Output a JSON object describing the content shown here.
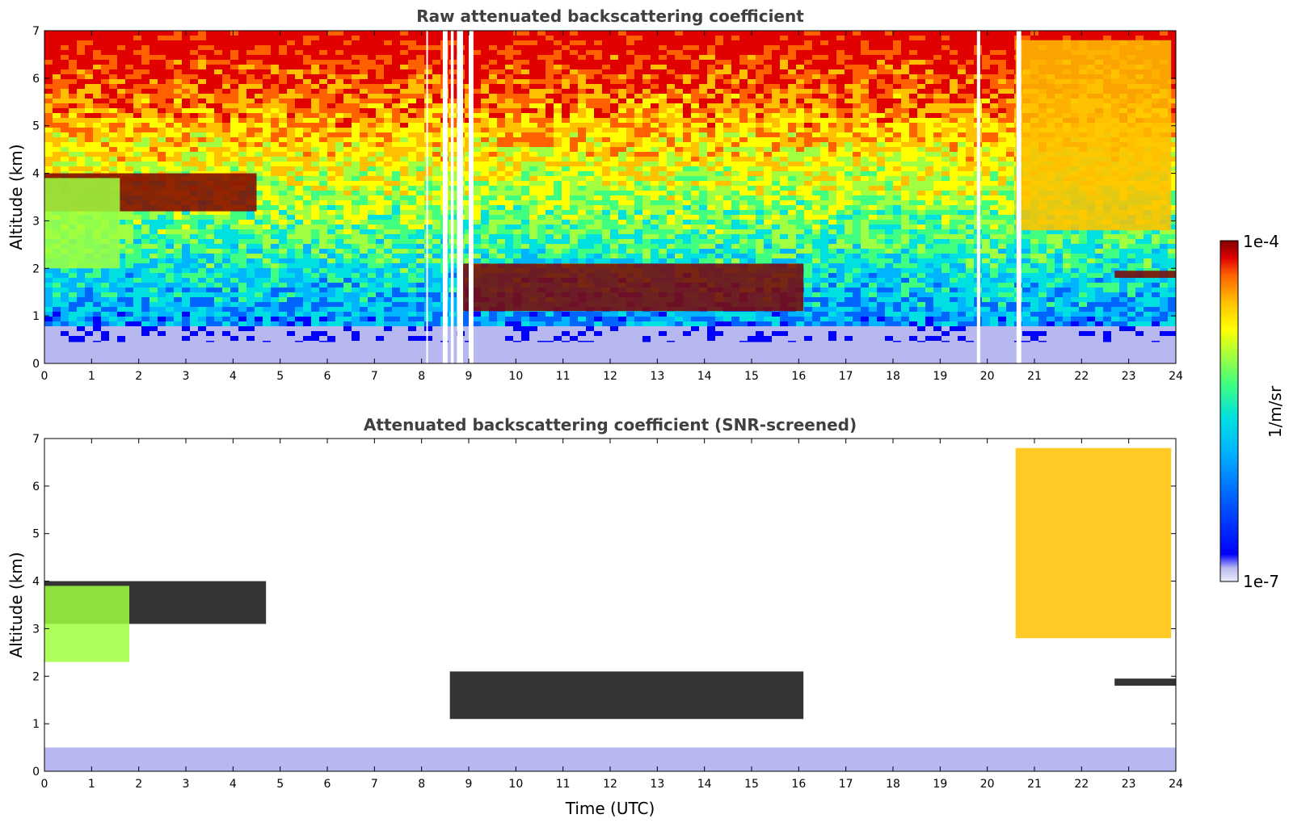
{
  "chart_data": [
    {
      "type": "heatmap",
      "title": "Raw attenuated backscattering coefficient",
      "xlabel": "",
      "ylabel": "Altitude (km)",
      "xlim": [
        0,
        24
      ],
      "ylim": [
        0,
        7
      ],
      "xticks": [
        "0",
        "1",
        "2",
        "3",
        "4",
        "5",
        "6",
        "7",
        "8",
        "9",
        "10",
        "11",
        "12",
        "13",
        "14",
        "15",
        "16",
        "17",
        "18",
        "19",
        "20",
        "21",
        "22",
        "23",
        "24"
      ],
      "yticks": [
        "0",
        "1",
        "2",
        "3",
        "4",
        "5",
        "6",
        "7"
      ],
      "background_signal": "noisy molecular return increasing with altitude (blue near ground to yellow/red aloft)",
      "gaps": [
        {
          "t0": 8.1,
          "t1": 8.12
        },
        {
          "t0": 8.45,
          "t1": 8.55
        },
        {
          "t0": 8.62,
          "t1": 8.68
        },
        {
          "t0": 8.75,
          "t1": 8.88
        },
        {
          "t0": 9.0,
          "t1": 9.1
        },
        {
          "t0": 19.78,
          "t1": 19.85
        },
        {
          "t0": 20.62,
          "t1": 20.72
        }
      ],
      "features": [
        {
          "label": "boundary layer",
          "t0": 0,
          "t1": 24,
          "h0": 0,
          "h1": 0.45,
          "level": "low"
        },
        {
          "label": "cloud layer",
          "t0": 0,
          "t1": 4.5,
          "h0": 3.2,
          "h1": 4.0,
          "level": "high"
        },
        {
          "label": "precipitation virga",
          "t0": 0,
          "t1": 1.6,
          "h0": 2.0,
          "h1": 3.9,
          "level": "mid"
        },
        {
          "label": "low cloud",
          "t0": 8.8,
          "t1": 16.1,
          "h0": 1.1,
          "h1": 2.1,
          "level": "high"
        },
        {
          "label": "high cloud",
          "t0": 20.6,
          "t1": 23.9,
          "h0": 2.8,
          "h1": 6.8,
          "level": "mid-high"
        },
        {
          "label": "low cloud",
          "t0": 22.7,
          "t1": 24,
          "h0": 1.8,
          "h1": 1.95,
          "level": "high"
        }
      ]
    },
    {
      "type": "heatmap",
      "title": "Attenuated backscattering coefficient (SNR-screened)",
      "xlabel": "Time (UTC)",
      "ylabel": "Altitude (km)",
      "xlim": [
        0,
        24
      ],
      "ylim": [
        0,
        7
      ],
      "xticks": [
        "0",
        "1",
        "2",
        "3",
        "4",
        "5",
        "6",
        "7",
        "8",
        "9",
        "10",
        "11",
        "12",
        "13",
        "14",
        "15",
        "16",
        "17",
        "18",
        "19",
        "20",
        "21",
        "22",
        "23",
        "24"
      ],
      "yticks": [
        "0",
        "1",
        "2",
        "3",
        "4",
        "5",
        "6",
        "7"
      ],
      "features": [
        {
          "label": "boundary layer",
          "t0": 0,
          "t1": 24,
          "h0": 0,
          "h1": 0.5,
          "level": "low"
        },
        {
          "label": "cloud layer",
          "t0": 0,
          "t1": 4.7,
          "h0": 3.1,
          "h1": 4.0,
          "level": "screened-top"
        },
        {
          "label": "precipitation virga",
          "t0": 0,
          "t1": 1.8,
          "h0": 2.3,
          "h1": 3.9,
          "level": "mid"
        },
        {
          "label": "low cloud",
          "t0": 8.6,
          "t1": 16.1,
          "h0": 1.1,
          "h1": 2.1,
          "level": "screened-top"
        },
        {
          "label": "high cloud",
          "t0": 20.6,
          "t1": 23.9,
          "h0": 2.8,
          "h1": 6.8,
          "level": "mid-high"
        },
        {
          "label": "low cloud",
          "t0": 22.7,
          "t1": 24,
          "h0": 1.8,
          "h1": 1.95,
          "level": "screened-top"
        }
      ]
    }
  ],
  "colorbar": {
    "label": "1/m/sr",
    "max_label": "1e-4",
    "min_label": "1e-7",
    "scale": "log",
    "range": [
      1e-07,
      0.0001
    ],
    "colormap": [
      "#ececfa",
      "#b8b8f0",
      "#0000ff",
      "#0064ff",
      "#00b4ff",
      "#00e0e0",
      "#40ff80",
      "#a0ff40",
      "#ffff00",
      "#ffc000",
      "#ff6000",
      "#e00000",
      "#800000"
    ]
  }
}
